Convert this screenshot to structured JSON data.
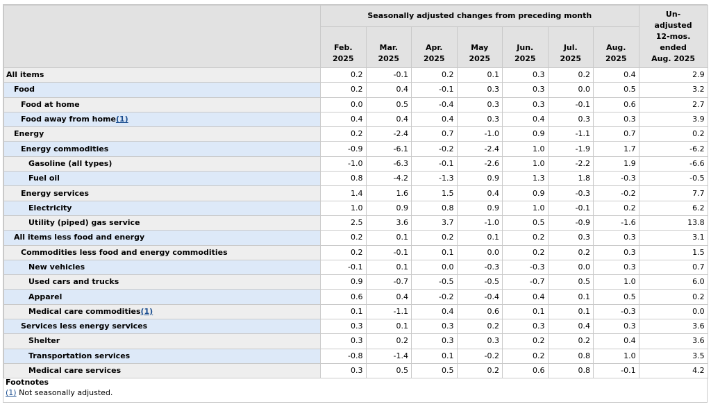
{
  "header": {
    "group_title": "Seasonally adjusted changes from preceding month",
    "months": [
      [
        "Feb.",
        "2025"
      ],
      [
        "Mar.",
        "2025"
      ],
      [
        "Apr.",
        "2025"
      ],
      [
        "May",
        "2025"
      ],
      [
        "Jun.",
        "2025"
      ],
      [
        "Jul.",
        "2025"
      ],
      [
        "Aug.",
        "2025"
      ]
    ],
    "unadjusted": [
      "Un-",
      "adjusted",
      "12-mos.",
      "ended",
      "Aug. 2025"
    ]
  },
  "rows": [
    {
      "label": "All items",
      "indent": 0,
      "fn": "",
      "values": [
        "0.2",
        "-0.1",
        "0.2",
        "0.1",
        "0.3",
        "0.2",
        "0.4",
        "2.9"
      ]
    },
    {
      "label": "Food",
      "indent": 1,
      "fn": "",
      "values": [
        "0.2",
        "0.4",
        "-0.1",
        "0.3",
        "0.3",
        "0.0",
        "0.5",
        "3.2"
      ]
    },
    {
      "label": "Food at home",
      "indent": 2,
      "fn": "",
      "values": [
        "0.0",
        "0.5",
        "-0.4",
        "0.3",
        "0.3",
        "-0.1",
        "0.6",
        "2.7"
      ]
    },
    {
      "label": "Food away from home",
      "indent": 2,
      "fn": "(1)",
      "values": [
        "0.4",
        "0.4",
        "0.4",
        "0.3",
        "0.4",
        "0.3",
        "0.3",
        "3.9"
      ]
    },
    {
      "label": "Energy",
      "indent": 1,
      "fn": "",
      "values": [
        "0.2",
        "-2.4",
        "0.7",
        "-1.0",
        "0.9",
        "-1.1",
        "0.7",
        "0.2"
      ]
    },
    {
      "label": "Energy commodities",
      "indent": 2,
      "fn": "",
      "values": [
        "-0.9",
        "-6.1",
        "-0.2",
        "-2.4",
        "1.0",
        "-1.9",
        "1.7",
        "-6.2"
      ]
    },
    {
      "label": "Gasoline (all types)",
      "indent": 3,
      "fn": "",
      "values": [
        "-1.0",
        "-6.3",
        "-0.1",
        "-2.6",
        "1.0",
        "-2.2",
        "1.9",
        "-6.6"
      ]
    },
    {
      "label": "Fuel oil",
      "indent": 3,
      "fn": "",
      "values": [
        "0.8",
        "-4.2",
        "-1.3",
        "0.9",
        "1.3",
        "1.8",
        "-0.3",
        "-0.5"
      ]
    },
    {
      "label": "Energy services",
      "indent": 2,
      "fn": "",
      "values": [
        "1.4",
        "1.6",
        "1.5",
        "0.4",
        "0.9",
        "-0.3",
        "-0.2",
        "7.7"
      ]
    },
    {
      "label": "Electricity",
      "indent": 3,
      "fn": "",
      "values": [
        "1.0",
        "0.9",
        "0.8",
        "0.9",
        "1.0",
        "-0.1",
        "0.2",
        "6.2"
      ]
    },
    {
      "label": "Utility (piped) gas service",
      "indent": 3,
      "fn": "",
      "values": [
        "2.5",
        "3.6",
        "3.7",
        "-1.0",
        "0.5",
        "-0.9",
        "-1.6",
        "13.8"
      ]
    },
    {
      "label": "All items less food and energy",
      "indent": 1,
      "fn": "",
      "values": [
        "0.2",
        "0.1",
        "0.2",
        "0.1",
        "0.2",
        "0.3",
        "0.3",
        "3.1"
      ]
    },
    {
      "label": "Commodities less food and energy commodities",
      "indent": 2,
      "fn": "",
      "values": [
        "0.2",
        "-0.1",
        "0.1",
        "0.0",
        "0.2",
        "0.2",
        "0.3",
        "1.5"
      ]
    },
    {
      "label": "New vehicles",
      "indent": 3,
      "fn": "",
      "values": [
        "-0.1",
        "0.1",
        "0.0",
        "-0.3",
        "-0.3",
        "0.0",
        "0.3",
        "0.7"
      ]
    },
    {
      "label": "Used cars and trucks",
      "indent": 3,
      "fn": "",
      "values": [
        "0.9",
        "-0.7",
        "-0.5",
        "-0.5",
        "-0.7",
        "0.5",
        "1.0",
        "6.0"
      ]
    },
    {
      "label": "Apparel",
      "indent": 3,
      "fn": "",
      "values": [
        "0.6",
        "0.4",
        "-0.2",
        "-0.4",
        "0.4",
        "0.1",
        "0.5",
        "0.2"
      ]
    },
    {
      "label": "Medical care commodities",
      "indent": 3,
      "fn": "(1)",
      "values": [
        "0.1",
        "-1.1",
        "0.4",
        "0.6",
        "0.1",
        "0.1",
        "-0.3",
        "0.0"
      ]
    },
    {
      "label": "Services less energy services",
      "indent": 2,
      "fn": "",
      "values": [
        "0.3",
        "0.1",
        "0.3",
        "0.2",
        "0.3",
        "0.4",
        "0.3",
        "3.6"
      ]
    },
    {
      "label": "Shelter",
      "indent": 3,
      "fn": "",
      "values": [
        "0.3",
        "0.2",
        "0.3",
        "0.3",
        "0.2",
        "0.2",
        "0.4",
        "3.6"
      ]
    },
    {
      "label": "Transportation services",
      "indent": 3,
      "fn": "",
      "values": [
        "-0.8",
        "-1.4",
        "0.1",
        "-0.2",
        "0.2",
        "0.8",
        "1.0",
        "3.5"
      ]
    },
    {
      "label": "Medical care services",
      "indent": 3,
      "fn": "",
      "values": [
        "0.3",
        "0.5",
        "0.5",
        "0.2",
        "0.6",
        "0.8",
        "-0.1",
        "4.2"
      ]
    }
  ],
  "footnotes": {
    "title": "Footnotes",
    "items": [
      {
        "ref": "(1)",
        "text": " Not seasonally adjusted."
      }
    ]
  }
}
